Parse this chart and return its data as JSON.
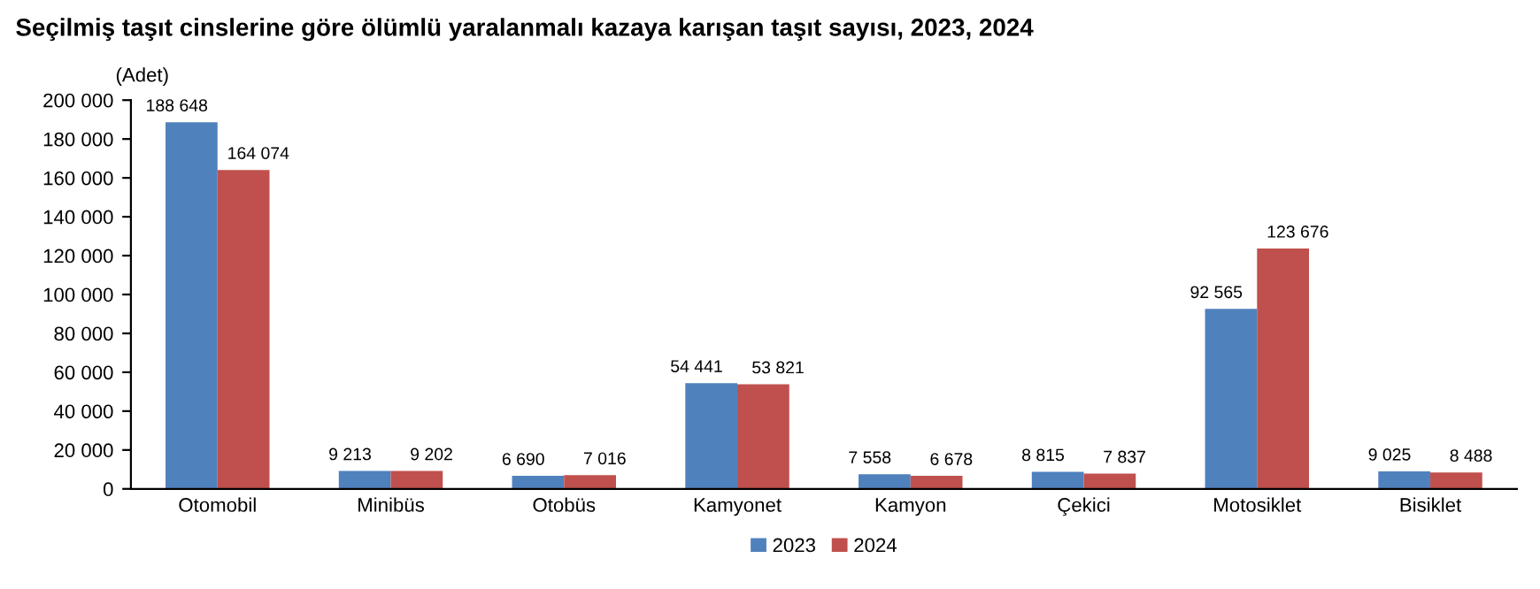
{
  "chart_data": {
    "type": "bar",
    "title": "Seçilmiş taşıt cinslerine göre ölümlü yaralanmalı kazaya karışan taşıt sayısı, 2023, 2024",
    "ylabel": "(Adet)",
    "categories": [
      "Otomobil",
      "Minibüs",
      "Otobüs",
      "Kamyonet",
      "Kamyon",
      "Çekici",
      "Motosiklet",
      "Bisiklet"
    ],
    "series": [
      {
        "name": "2023",
        "color": "#4f81bd",
        "values": [
          188648,
          9213,
          6690,
          54441,
          7558,
          8815,
          92565,
          9025
        ],
        "value_labels": [
          "188 648",
          "9 213",
          "6 690",
          "54 441",
          "7 558",
          "8 815",
          "92 565",
          "9 025"
        ]
      },
      {
        "name": "2024",
        "color": "#c0504d",
        "values": [
          164074,
          9202,
          7016,
          53821,
          6678,
          7837,
          123676,
          8488
        ],
        "value_labels": [
          "164 074",
          "9 202",
          "7 016",
          "53 821",
          "6 678",
          "7 837",
          "123 676",
          "8 488"
        ]
      }
    ],
    "ylim": [
      0,
      200000
    ],
    "yticks": [
      0,
      {
        "value": 20000,
        "label": "20 000"
      },
      {
        "value": 40000,
        "label": "40 000"
      },
      {
        "value": 60000,
        "label": "60 000"
      },
      {
        "value": 80000,
        "label": "80 000"
      },
      {
        "value": 100000,
        "label": "100 000"
      },
      {
        "value": 120000,
        "label": "120 000"
      },
      {
        "value": 140000,
        "label": "140 000"
      },
      {
        "value": 160000,
        "label": "160 000"
      },
      {
        "value": 180000,
        "label": "180 000"
      },
      {
        "value": 200000,
        "label": "200 000"
      }
    ],
    "grid": false,
    "legend": "bottom"
  }
}
